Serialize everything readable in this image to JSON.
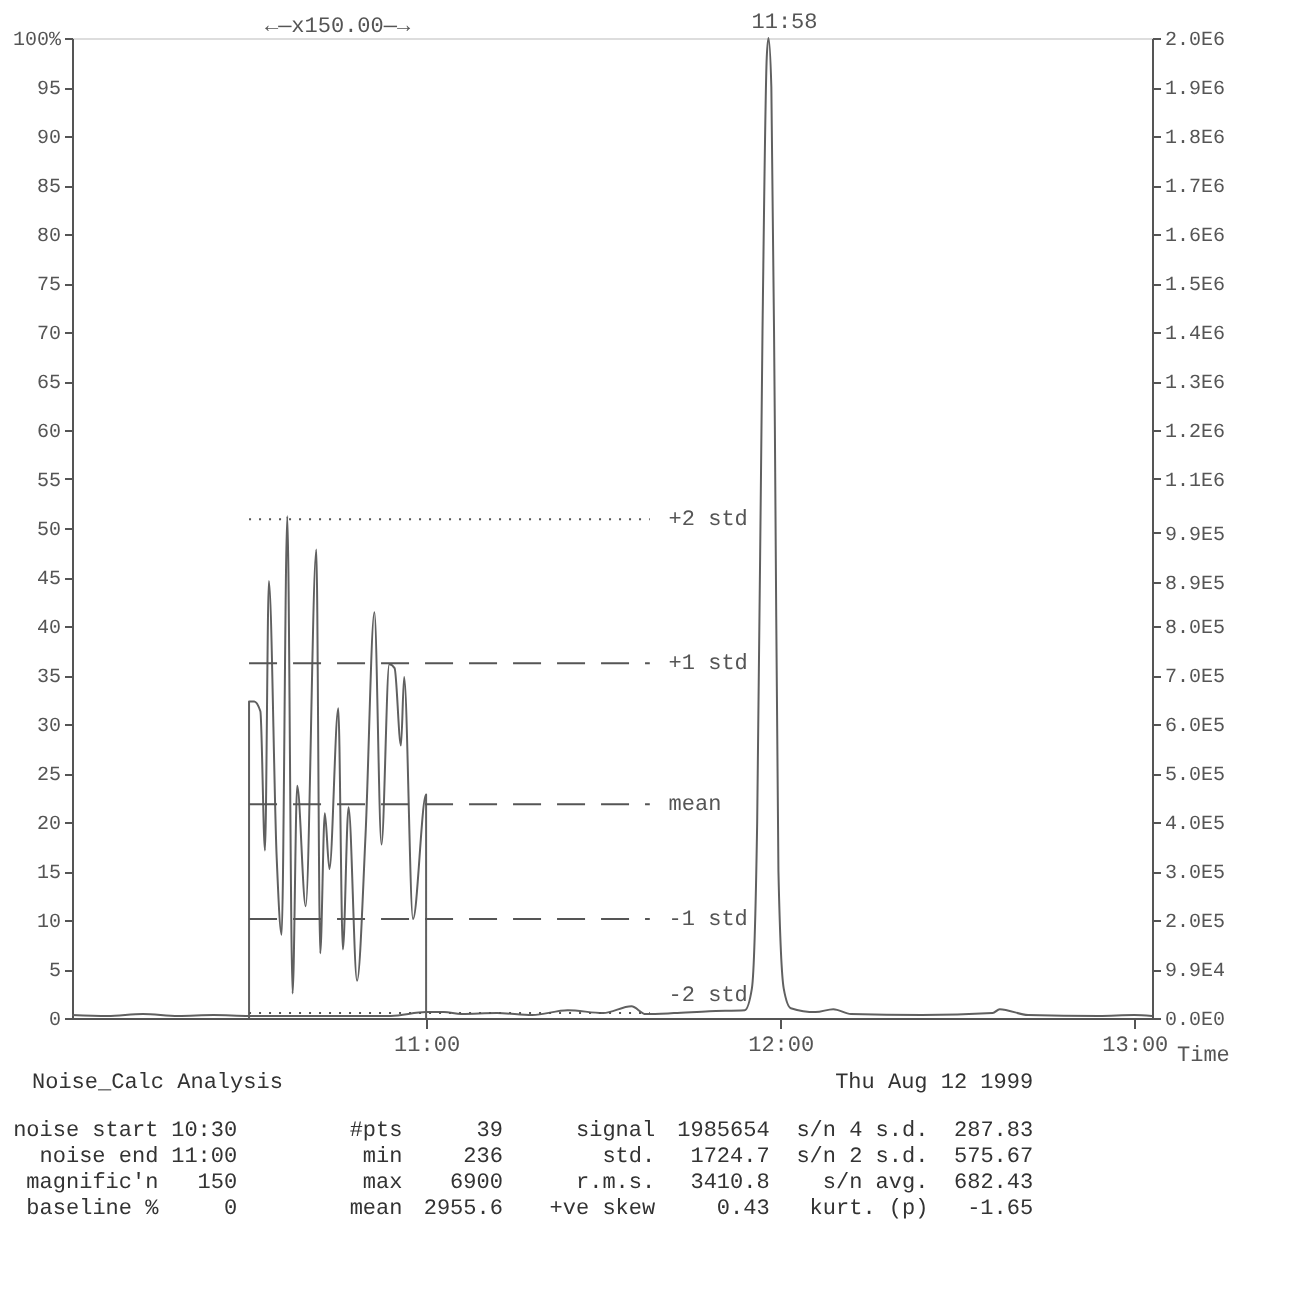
{
  "chart_data": {
    "type": "line",
    "xlabel": "Time",
    "xlim": [
      10.0,
      13.05
    ],
    "xticks": [
      {
        "value": 11,
        "label": "11:00"
      },
      {
        "value": 12,
        "label": "12:00"
      },
      {
        "value": 13,
        "label": "13:00"
      }
    ],
    "ylim": [
      0,
      100
    ],
    "yticks": [
      0,
      5,
      10,
      15,
      20,
      25,
      30,
      35,
      40,
      45,
      50,
      55,
      60,
      65,
      70,
      75,
      80,
      85,
      90,
      95,
      {
        "value": 100,
        "label": "100%"
      }
    ],
    "y2lim": [
      0,
      2000000
    ],
    "y2ticks": [
      {
        "value": 0,
        "label": "0.0E0"
      },
      {
        "value": 99000,
        "label": "9.9E4"
      },
      {
        "value": 200000,
        "label": "2.0E5"
      },
      {
        "value": 300000,
        "label": "3.0E5"
      },
      {
        "value": 400000,
        "label": "4.0E5"
      },
      {
        "value": 500000,
        "label": "5.0E5"
      },
      {
        "value": 600000,
        "label": "6.0E5"
      },
      {
        "value": 700000,
        "label": "7.0E5"
      },
      {
        "value": 800000,
        "label": "8.0E5"
      },
      {
        "value": 890000,
        "label": "8.9E5"
      },
      {
        "value": 990000,
        "label": "9.9E5"
      },
      {
        "value": 1100000,
        "label": "1.1E6"
      },
      {
        "value": 1200000,
        "label": "1.2E6"
      },
      {
        "value": 1300000,
        "label": "1.3E6"
      },
      {
        "value": 1400000,
        "label": "1.4E6"
      },
      {
        "value": 1500000,
        "label": "1.5E6"
      },
      {
        "value": 1600000,
        "label": "1.6E6"
      },
      {
        "value": 1700000,
        "label": "1.7E6"
      },
      {
        "value": 1800000,
        "label": "1.8E6"
      },
      {
        "value": 1900000,
        "label": "1.9E6"
      },
      {
        "value": 2000000,
        "label": "2.0E6"
      }
    ],
    "series": [
      {
        "color": "#606060",
        "x": [
          10.0,
          10.1,
          10.2,
          10.3,
          10.4,
          10.5,
          10.7,
          10.9,
          11.0,
          11.05,
          11.1,
          11.2,
          11.3,
          11.4,
          11.5,
          11.58,
          11.62,
          11.7,
          11.8,
          11.9,
          11.92,
          11.935,
          11.95,
          11.962,
          11.967,
          11.975,
          11.985,
          11.995,
          12.01,
          12.03,
          12.1,
          12.15,
          12.2,
          12.4,
          12.6,
          12.62,
          12.7,
          12.9,
          13.0,
          13.05
        ],
        "values": [
          0.3,
          0.2,
          0.4,
          0.2,
          0.3,
          0.2,
          0.2,
          0.2,
          0.6,
          0.6,
          0.4,
          0.5,
          0.3,
          0.8,
          0.5,
          1.2,
          0.4,
          0.5,
          0.7,
          0.8,
          3,
          20,
          70,
          98,
          100,
          95,
          60,
          15,
          3,
          1,
          0.6,
          0.9,
          0.4,
          0.3,
          0.5,
          0.9,
          0.3,
          0.2,
          0.3,
          0.2
        ]
      },
      {
        "color": "#606060",
        "x": [
          10.5,
          10.5,
          10.514,
          10.532,
          10.545,
          10.556,
          10.578,
          10.592,
          10.608,
          10.623,
          10.636,
          10.66,
          10.69,
          10.701,
          10.714,
          10.727,
          10.752,
          10.765,
          10.781,
          10.805,
          10.829,
          10.854,
          10.874,
          10.896,
          10.911,
          10.929,
          10.938,
          10.963,
          11.0,
          11.0
        ],
        "values": [
          0,
          32.3,
          32.3,
          31.3,
          17.1,
          44.6,
          16.4,
          8.5,
          51.2,
          2.5,
          23.7,
          11.4,
          47.8,
          6.6,
          20.9,
          15.2,
          31.6,
          7.0,
          21.5,
          3.8,
          18.7,
          41.4,
          17.7,
          36.1,
          35.7,
          27.8,
          34.8,
          10.1,
          22.8,
          0
        ]
      }
    ],
    "ref_lines": [
      {
        "axis": "y",
        "value": 50.9,
        "label": "+2 std",
        "line_style": "dotted"
      },
      {
        "axis": "y",
        "value": 36.2,
        "label": "+1 std",
        "line_style": "dashed"
      },
      {
        "axis": "y",
        "value": 21.8,
        "label": "mean",
        "line_style": "dashed"
      },
      {
        "axis": "y",
        "value": 10.1,
        "label": "-1 std",
        "line_style": "dashed"
      },
      {
        "axis": "y",
        "value": 0.5,
        "label": "-2 std",
        "line_style": "dotted"
      }
    ],
    "annotations": [
      {
        "text": "11:58",
        "x": 11.967,
        "y": 100
      },
      "←—x150.00—→",
      "Noise_Calc Analysis",
      "Thu Aug 12 1999",
      "noise start",
      "10:30",
      "#pts",
      "39",
      "signal",
      "1985654",
      "s/n 4 s.d.",
      "287.83",
      "noise end",
      "11:00",
      "min",
      "236",
      "std.",
      "1724.7",
      "s/n 2 s.d.",
      "575.67",
      "magnific'n",
      "150",
      "max",
      "6900",
      "r.m.s.",
      "3410.8",
      "s/n avg.",
      "682.43",
      "baseline %",
      "0",
      "mean",
      "2955.6",
      "+ve skew",
      "0.43",
      "kurt. (p)",
      "-1.65"
    ]
  }
}
